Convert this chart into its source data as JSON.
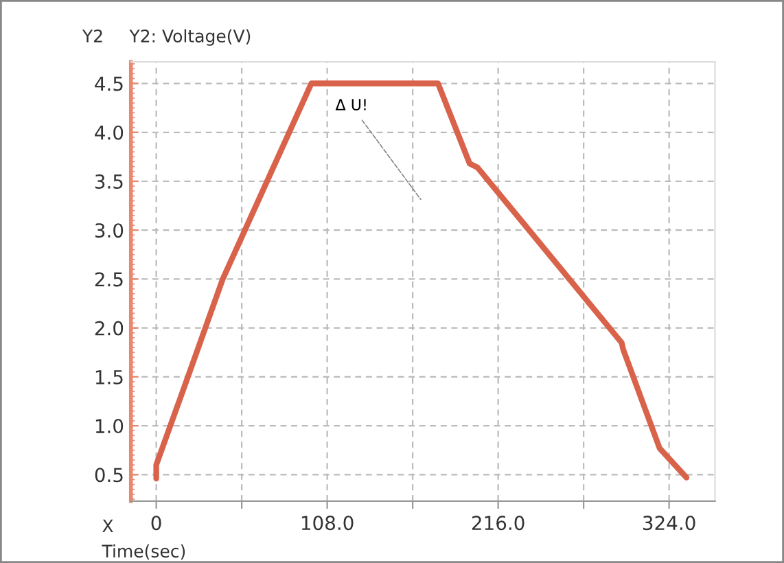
{
  "chart_data": {
    "type": "line",
    "ylabel": "Y2: Voltage(V)",
    "xlabel": "Time(sec)",
    "annotations": [
      "Y2",
      "X",
      "Δ U!"
    ],
    "x": [
      0,
      0,
      20,
      42,
      98,
      178,
      198,
      203,
      294,
      295,
      318,
      335
    ],
    "series": [
      {
        "color": "#d9624a",
        "values": [
          0.46,
          0.6,
          1.5,
          2.5,
          4.5,
          4.5,
          3.68,
          3.64,
          1.85,
          1.78,
          0.77,
          0.47
        ]
      }
    ],
    "xlim": [
      -16,
      353
    ],
    "ylim": [
      0.23,
      4.72
    ],
    "xticks": [
      {
        "value": 0,
        "label": "0"
      },
      {
        "value": 54,
        "label": null
      },
      {
        "value": 108,
        "label": "108.0"
      },
      {
        "value": 162,
        "label": null
      },
      {
        "value": 216,
        "label": "216.0"
      },
      {
        "value": 270,
        "label": null
      },
      {
        "value": 324,
        "label": "324.0"
      }
    ],
    "yticks": [
      {
        "value": 0.5,
        "label": "0.5"
      },
      {
        "value": 1.0,
        "label": "1.0"
      },
      {
        "value": 1.5,
        "label": "1.5"
      },
      {
        "value": 2.0,
        "label": "2.0"
      },
      {
        "value": 2.5,
        "label": "2.5"
      },
      {
        "value": 3.0,
        "label": "3.0"
      },
      {
        "value": 3.5,
        "label": "3.5"
      },
      {
        "value": 4.0,
        "label": "4.0"
      },
      {
        "value": 4.5,
        "label": "4.5"
      }
    ],
    "grid": true,
    "marker": "none",
    "line_style": "solid"
  }
}
